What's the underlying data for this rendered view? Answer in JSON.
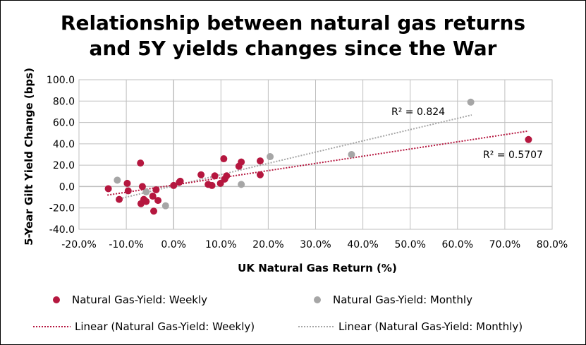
{
  "chart_data": {
    "type": "scatter",
    "title_line1": "Relationship between natural gas returns",
    "title_line2": "and 5Y yields changes since the War",
    "xlabel": "UK Natural Gas Return (%)",
    "ylabel": "5-Year Gilt Yield Change (bps)",
    "xlim": [
      -20,
      80
    ],
    "ylim": [
      -40,
      100
    ],
    "x_ticks": [
      -20,
      -10,
      0,
      10,
      20,
      30,
      40,
      50,
      60,
      70,
      80
    ],
    "x_tick_labels": [
      "-20.0%",
      "-10.0%",
      "0.0%",
      "10.0%",
      "20.0%",
      "30.0%",
      "40.0%",
      "50.0%",
      "60.0%",
      "70.0%",
      "80.0%"
    ],
    "y_ticks": [
      -40,
      -20,
      0,
      20,
      40,
      60,
      80,
      100
    ],
    "y_tick_labels": [
      "-40.0",
      "-20.0",
      "0.0",
      "20.0",
      "40.0",
      "60.0",
      "80.0",
      "100.0"
    ],
    "grid": true,
    "colors": {
      "weekly": "#B5173F",
      "monthly": "#A6A6A6"
    },
    "series": [
      {
        "name": "Natural Gas-Yield: Weekly",
        "x": [
          -13.8,
          -11.5,
          -9.8,
          -9.6,
          -7.0,
          -6.9,
          -6.6,
          -6.3,
          -5.8,
          -4.4,
          -4.2,
          -3.7,
          -3.3,
          0.0,
          1.2,
          1.4,
          5.8,
          7.3,
          8.1,
          8.7,
          9.9,
          10.6,
          10.8,
          11.2,
          13.8,
          14.3,
          18.3,
          18.3,
          75.0
        ],
        "y": [
          -2,
          -12,
          3,
          -4,
          22,
          -16,
          0,
          -12,
          -14,
          -9,
          -23,
          -3,
          -13,
          1,
          4,
          5,
          11,
          2,
          1,
          10,
          3,
          26,
          7,
          10,
          19,
          23,
          24,
          11,
          44
        ]
      },
      {
        "name": "Natural Gas-Yield: Monthly",
        "x": [
          -11.9,
          -5.8,
          -1.7,
          20.4,
          14.3,
          37.6,
          62.8
        ],
        "y": [
          6,
          -5,
          -18,
          28,
          2,
          30,
          79
        ]
      },
      {
        "name": "Linear (Natural Gas-Yield: Weekly)",
        "type": "trendline",
        "x": [
          -14,
          75
        ],
        "y": [
          -8,
          52
        ],
        "r2_label": "R² = 0.5707"
      },
      {
        "name": "Linear (Natural Gas-Yield: Monthly)",
        "type": "trendline",
        "x": [
          -12,
          63
        ],
        "y": [
          -12,
          67
        ],
        "r2_label": "R² = 0.824"
      }
    ],
    "legend_position": "bottom"
  }
}
